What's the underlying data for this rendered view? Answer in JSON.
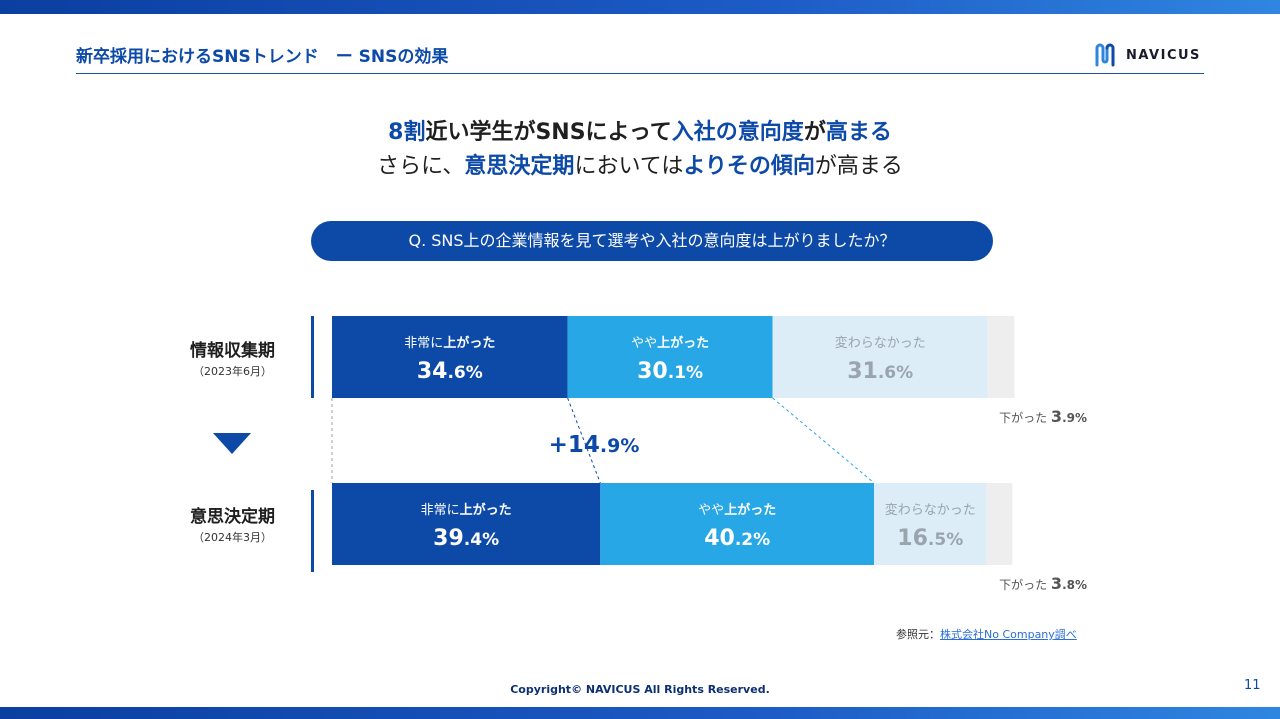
{
  "header": {
    "title": "新卒採用におけるSNSトレンド　ー SNSの効果",
    "logo_text": "NAVICUS"
  },
  "headline": {
    "line1": [
      {
        "text": "8割",
        "style": "hl"
      },
      {
        "text": "近い学生がSNSによって",
        "style": "normal"
      },
      {
        "text": "入社の意向度",
        "style": "hl"
      },
      {
        "text": "が",
        "style": "normal"
      },
      {
        "text": "高まる",
        "style": "hl"
      }
    ],
    "line2": [
      {
        "text": "さらに、",
        "style": "plain"
      },
      {
        "text": "意思決定期",
        "style": "hl"
      },
      {
        "text": "においては",
        "style": "plain"
      },
      {
        "text": "よりその傾向",
        "style": "hl"
      },
      {
        "text": "が高まる",
        "style": "plain"
      }
    ]
  },
  "question": "Q.  SNS上の企業情報を見て選考や入社の意向度は上がりましたか？",
  "rows": [
    {
      "label": "情報収集期",
      "sub": "（2023年6月）"
    },
    {
      "label": "意思決定期",
      "sub": "（2024年3月）"
    }
  ],
  "chart_data": {
    "type": "bar",
    "orientation": "horizontal-stacked-100",
    "categories": [
      "情報収集期（2023年6月）",
      "意思決定期（2024年3月）"
    ],
    "series": [
      {
        "name": "非常に上がった",
        "values": [
          34.6,
          39.4
        ],
        "color": "#0d4aa8"
      },
      {
        "name": "やや上がった",
        "values": [
          30.1,
          40.2
        ],
        "color": "#27a7e5"
      },
      {
        "name": "変わらなかった",
        "values": [
          31.6,
          16.5
        ],
        "color": "#dcedf8"
      },
      {
        "name": "下がった",
        "values": [
          3.9,
          3.8
        ],
        "color": "#eeeeee"
      }
    ],
    "value_labels": [
      [
        "34.6%",
        "30.1%",
        "31.6%",
        "3.9%"
      ],
      [
        "39.4%",
        "40.2%",
        "16.5%",
        "3.8%"
      ]
    ],
    "delta_label": "+14.9%",
    "xlim": [
      0,
      100
    ]
  },
  "source": {
    "prefix": "参照元：",
    "link": "株式会社No Company調べ"
  },
  "copyright": "Copyright© NAVICUS All Rights Reserved.",
  "page_number": "11"
}
